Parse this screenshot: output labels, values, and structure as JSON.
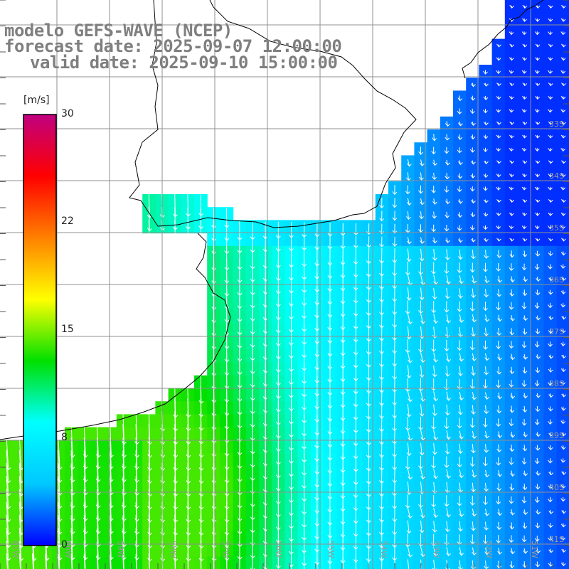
{
  "title": {
    "model": "modelo GEFS-WAVE (NCEP)",
    "forecast": "forecast date: 2025-09-07 12:00:00",
    "valid": "valid date: 2025-09-10 15:00:00"
  },
  "colorbar": {
    "unit": "[m/s]",
    "min": 0,
    "max": 30,
    "ticks": [
      "30",
      "22",
      "15",
      "8",
      "0"
    ],
    "colors": [
      "#0000ff",
      "#00c8ff",
      "#00ffff",
      "#00e000",
      "#ffff00",
      "#ff8000",
      "#ff0000",
      "#c00080"
    ]
  },
  "map": {
    "lon_labels": [
      "61W",
      "60W",
      "59W",
      "58W",
      "57W",
      "56W",
      "55W",
      "54W",
      "53W",
      "52W",
      "51W"
    ],
    "lat_labels": [
      "33S",
      "34S",
      "35S",
      "36S",
      "37S",
      "38S",
      "39S",
      "40S",
      "41S"
    ],
    "land_color": "#ffffff",
    "grid_color": "#909090",
    "arrow_color": "#ffffff"
  }
}
